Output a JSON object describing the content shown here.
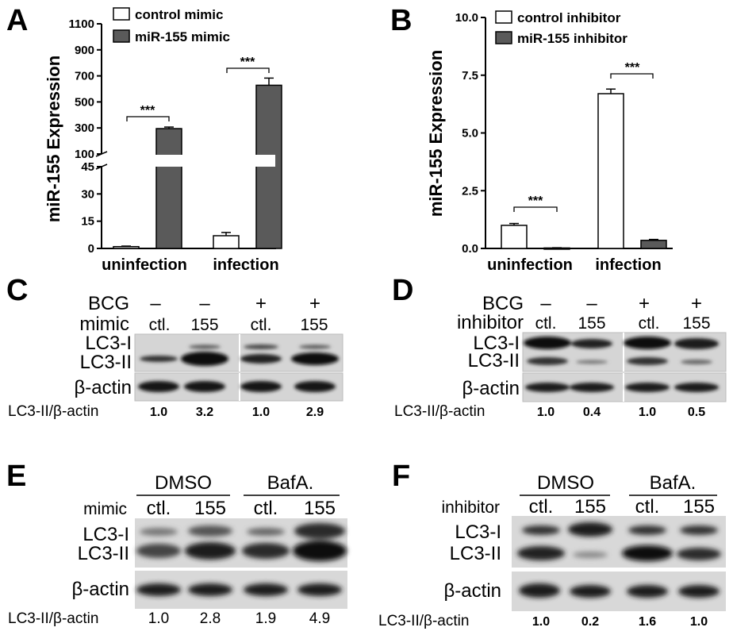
{
  "panels": {
    "A": "A",
    "B": "B",
    "C": "C",
    "D": "D",
    "E": "E",
    "F": "F"
  },
  "chart_data": [
    {
      "type": "bar",
      "panel": "A",
      "ylabel": "miR-155 Expression",
      "categories": [
        "uninfection",
        "infection"
      ],
      "axis_break": true,
      "yticks_lower": [
        "0",
        "15",
        "30",
        "45"
      ],
      "yticks_upper": [
        "100",
        "300",
        "500",
        "700",
        "900",
        "1100"
      ],
      "ylim_lower": [
        0,
        45
      ],
      "ylim_upper": [
        100,
        1100
      ],
      "series": [
        {
          "name": "control mimic",
          "values": [
            1,
            7
          ],
          "errors": [
            0.3,
            1.8
          ],
          "color": "#ffffff"
        },
        {
          "name": "miR-155 mimic",
          "values": [
            295,
            628
          ],
          "errors": [
            12,
            55
          ],
          "color": "#5a5a5a"
        }
      ],
      "significance": [
        "***",
        "***"
      ],
      "legend_position": "top-left"
    },
    {
      "type": "bar",
      "panel": "B",
      "ylabel": "miR-155 Expression",
      "categories": [
        "uninfection",
        "infection"
      ],
      "yticks": [
        "0.0",
        "2.5",
        "5.0",
        "7.5",
        "10.0"
      ],
      "ylim": [
        0,
        10
      ],
      "series": [
        {
          "name": "control inhibitor",
          "values": [
            1.0,
            6.7
          ],
          "errors": [
            0.08,
            0.2
          ],
          "color": "#ffffff"
        },
        {
          "name": "miR-155 inhibitor",
          "values": [
            0.02,
            0.35
          ],
          "errors": [
            0.01,
            0.04
          ],
          "color": "#5a5a5a"
        }
      ],
      "significance": [
        "***",
        "***"
      ],
      "legend_position": "top-left"
    }
  ],
  "blots": {
    "C": {
      "row1_label": "BCG",
      "row1": [
        "–",
        "–",
        "+",
        "+"
      ],
      "row2_label": "mimic",
      "row2": [
        "ctl.",
        "155",
        "ctl.",
        "155"
      ],
      "band1": "LC3-I",
      "band2": "LC3-II",
      "band3": "β-actin",
      "ratio_label": "LC3-II/β-actin",
      "ratios": [
        "1.0",
        "3.2",
        "1.0",
        "2.9"
      ]
    },
    "D": {
      "row1_label": "BCG",
      "row1": [
        "–",
        "–",
        "+",
        "+"
      ],
      "row2_label": "inhibitor",
      "row2": [
        "ctl.",
        "155",
        "ctl.",
        "155"
      ],
      "band1": "LC3-I",
      "band2": "LC3-II",
      "band3": "β-actin",
      "ratio_label": "LC3-II/β-actin",
      "ratios": [
        "1.0",
        "0.4",
        "1.0",
        "0.5"
      ]
    },
    "E": {
      "group1": "DMSO",
      "group2": "BafA.",
      "row2_label": "mimic",
      "row2": [
        "ctl.",
        "155",
        "ctl.",
        "155"
      ],
      "band1": "LC3-I",
      "band2": "LC3-II",
      "band3": "β-actin",
      "ratio_label": "LC3-II/β-actin",
      "ratios": [
        "1.0",
        "2.8",
        "1.9",
        "4.9"
      ]
    },
    "F": {
      "group1": "DMSO",
      "group2": "BafA.",
      "row2_label": "inhibitor",
      "row2": [
        "ctl.",
        "155",
        "ctl.",
        "155"
      ],
      "band1": "LC3-I",
      "band2": "LC3-II",
      "band3": "β-actin",
      "ratio_label": "LC3-II/β-actin",
      "ratios": [
        "1.0",
        "0.2",
        "1.6",
        "1.0"
      ]
    }
  },
  "colors": {
    "bar_dark": "#5a5a5a",
    "bar_light": "#ffffff",
    "blot_bg": "#d9d9d9",
    "band": "#1e1e1e"
  }
}
